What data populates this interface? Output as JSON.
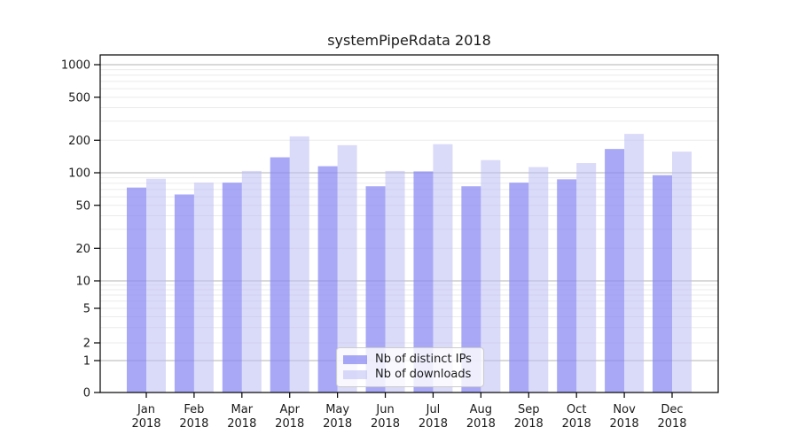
{
  "title": "systemPipeRdata 2018",
  "chart_data": {
    "type": "bar",
    "title": "systemPipeRdata 2018",
    "categories": [
      "Jan 2018",
      "Feb 2018",
      "Mar 2018",
      "Apr 2018",
      "May 2018",
      "Jun 2018",
      "Jul 2018",
      "Aug 2018",
      "Sep 2018",
      "Oct 2018",
      "Nov 2018",
      "Dec 2018"
    ],
    "series": [
      {
        "name": "Nb of distinct IPs",
        "color": "rgba(134,134,242,0.72)",
        "values": [
          73,
          63,
          81,
          139,
          115,
          75,
          103,
          75,
          81,
          87,
          166,
          95
        ]
      },
      {
        "name": "Nb of downloads",
        "color": "rgba(187,187,244,0.55)",
        "values": [
          88,
          81,
          104,
          217,
          180,
          104,
          184,
          131,
          113,
          123,
          229,
          157
        ]
      }
    ],
    "yscale": "symlog",
    "ylim": [
      0,
      1000
    ],
    "y_ticks": [
      0,
      1,
      2,
      5,
      10,
      20,
      50,
      100,
      200,
      500,
      1000
    ],
    "grid": {
      "horizontal_major": true,
      "horizontal_minor": true,
      "vertical": false
    },
    "legend_position": "lower center",
    "xlabel": "",
    "ylabel": ""
  },
  "colors": {
    "series_ips": "rgba(134,134,242,0.72)",
    "series_downloads": "rgba(187,187,244,0.55)",
    "major_grid": "#b3b3b3",
    "minor_grid": "#ebebeb",
    "axis": "#000000",
    "text": "#1a1a1a",
    "legend_border": "#cccccc"
  }
}
